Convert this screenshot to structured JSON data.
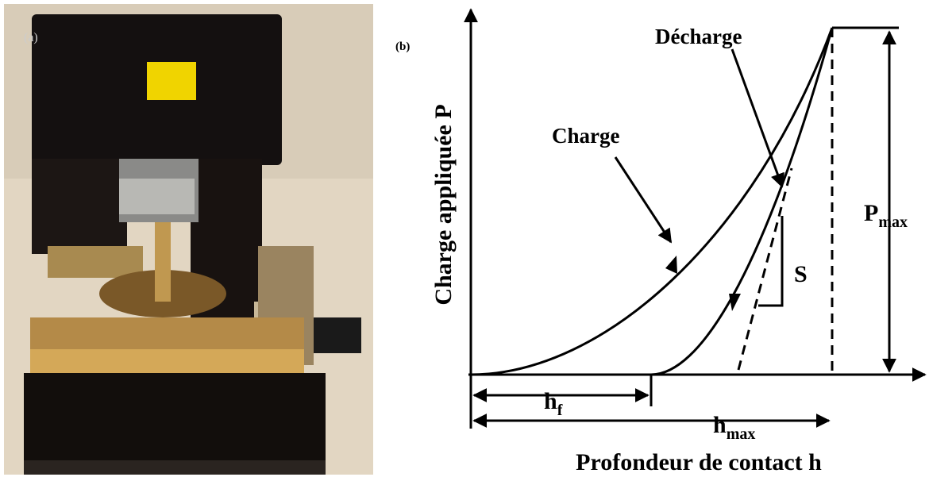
{
  "panel_a": {
    "label": "(a)"
  },
  "panel_b": {
    "label": "(b)",
    "y_axis_label": "Charge appliquée P",
    "x_axis_label": "Profondeur de contact h",
    "loading_label": "Charge",
    "unloading_label": "Décharge",
    "stiffness_label": "S",
    "h_f": {
      "base": "h",
      "sub": "f"
    },
    "h_max": {
      "base": "h",
      "sub": "max"
    },
    "p_max": {
      "base": "P",
      "sub": "max"
    }
  }
}
